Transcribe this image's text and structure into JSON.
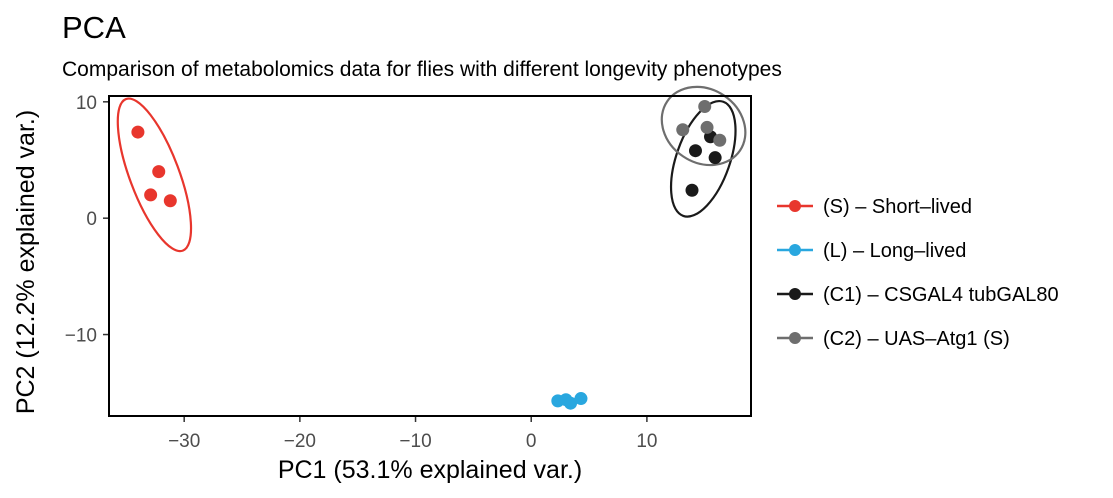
{
  "chart_data": {
    "type": "scatter",
    "title": "PCA",
    "subtitle": "Comparison of metabolomics data for flies with different longevity phenotypes",
    "xlabel": "PC1 (53.1% explained var.)",
    "ylabel": "PC2 (12.2% explained var.)",
    "xlim": [
      -36.5,
      19
    ],
    "ylim": [
      -17,
      10.5
    ],
    "x_ticks": [
      -30,
      -20,
      -10,
      0,
      10
    ],
    "x_tick_labels": [
      "−30",
      "−20",
      "−10",
      "0",
      "10"
    ],
    "y_ticks": [
      10,
      0,
      -10
    ],
    "y_tick_labels": [
      "10",
      "0",
      "−10"
    ],
    "grid": false,
    "legend_position": "right",
    "series": [
      {
        "name": "(S) – Short–lived",
        "color": "#E8362D",
        "points": [
          [
            -34.0,
            7.4
          ],
          [
            -32.2,
            4.0
          ],
          [
            -32.9,
            2.0
          ],
          [
            -31.2,
            1.5
          ]
        ],
        "ellipse": true
      },
      {
        "name": "(L) – Long–lived",
        "color": "#29A7DF",
        "points": [
          [
            2.3,
            -15.7
          ],
          [
            3.0,
            -15.6
          ],
          [
            3.4,
            -15.9
          ],
          [
            4.3,
            -15.5
          ]
        ],
        "ellipse": false
      },
      {
        "name": "(C1) – CSGAL4 tubGAL80",
        "color": "#1A1A1A",
        "points": [
          [
            13.9,
            2.4
          ],
          [
            14.2,
            5.8
          ],
          [
            15.9,
            5.2
          ],
          [
            15.5,
            7.0
          ]
        ],
        "ellipse": true
      },
      {
        "name": "(C2) – UAS–Atg1 (S)",
        "color": "#6E6E6E",
        "points": [
          [
            15.0,
            9.6
          ],
          [
            15.2,
            7.8
          ],
          [
            13.1,
            7.6
          ],
          [
            16.3,
            6.7
          ]
        ],
        "ellipse": true
      }
    ]
  }
}
